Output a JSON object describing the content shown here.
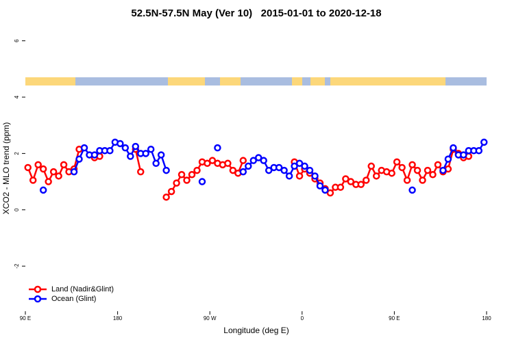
{
  "chart_data": {
    "type": "line",
    "title": "52.5N-57.5N May (Ver 10)   2015-01-01 to 2020-12-18",
    "xlabel": "Longitude (deg E)",
    "ylabel": "XCO2 - MLO trend (ppm)",
    "x": [
      92.5,
      97.5,
      102.5,
      107.5,
      112.5,
      117.5,
      122.5,
      127.5,
      132.5,
      137.5,
      142.5,
      147.5,
      152.5,
      157.5,
      162.5,
      167.5,
      172.5,
      177.5,
      182.5,
      187.5,
      192.5,
      197.5,
      202.5,
      207.5,
      212.5,
      217.5,
      222.5,
      227.5,
      232.5,
      237.5,
      242.5,
      247.5,
      252.5,
      257.5,
      262.5,
      267.5,
      272.5,
      277.5,
      282.5,
      287.5,
      292.5,
      297.5,
      302.5,
      307.5,
      312.5,
      317.5,
      322.5,
      327.5,
      332.5,
      337.5,
      342.5,
      347.5,
      352.5,
      357.5,
      362.5,
      367.5,
      372.5,
      377.5,
      382.5,
      387.5,
      392.5,
      397.5,
      402.5,
      407.5,
      412.5,
      417.5,
      422.5,
      427.5,
      432.5,
      437.5,
      442.5,
      447.5,
      452.5,
      457.5,
      462.5,
      467.5,
      472.5,
      477.5,
      482.5,
      487.5,
      492.5,
      497.5,
      502.5,
      507.5,
      512.5,
      517.5,
      522.5,
      527.5,
      532.5,
      537.5
    ],
    "series": [
      {
        "name": "Land (Nadir&Glint)",
        "color": "#ff0000",
        "values": [
          1.5,
          1.05,
          1.6,
          1.45,
          1.0,
          1.35,
          1.2,
          1.6,
          1.35,
          1.45,
          2.15,
          null,
          null,
          1.85,
          1.9,
          null,
          null,
          null,
          null,
          null,
          null,
          2.15,
          1.35,
          null,
          null,
          null,
          null,
          0.45,
          0.65,
          0.95,
          1.25,
          1.05,
          1.25,
          1.4,
          1.7,
          1.65,
          1.75,
          1.65,
          1.6,
          1.65,
          1.4,
          1.3,
          1.75,
          null,
          null,
          null,
          null,
          null,
          null,
          null,
          null,
          null,
          1.7,
          1.2,
          1.45,
          1.3,
          1.1,
          0.95,
          0.75,
          0.6,
          0.8,
          0.8,
          1.1,
          1.0,
          0.9,
          0.9,
          1.05,
          1.55,
          1.2,
          1.4,
          1.35,
          1.3,
          1.7,
          1.5,
          1.05,
          1.6,
          1.4,
          1.05,
          1.4,
          1.25,
          1.6,
          1.35,
          1.45,
          2.15,
          2.0,
          1.85,
          1.9,
          null,
          null,
          null
        ]
      },
      {
        "name": "Ocean (Glint)",
        "color": "#0000ff",
        "values": [
          null,
          null,
          null,
          0.7,
          null,
          null,
          null,
          null,
          null,
          1.35,
          1.8,
          2.2,
          1.95,
          1.95,
          2.1,
          2.1,
          2.1,
          2.4,
          2.35,
          2.2,
          1.9,
          2.25,
          2.0,
          2.0,
          2.15,
          1.65,
          1.95,
          1.4,
          null,
          null,
          null,
          null,
          null,
          null,
          1.0,
          null,
          null,
          2.2,
          null,
          null,
          null,
          null,
          1.35,
          1.55,
          1.75,
          1.85,
          1.75,
          1.4,
          1.5,
          1.5,
          1.4,
          1.2,
          1.55,
          1.65,
          1.55,
          1.4,
          1.2,
          0.85,
          0.7,
          null,
          null,
          null,
          null,
          null,
          null,
          null,
          null,
          null,
          null,
          null,
          null,
          null,
          null,
          null,
          null,
          0.7,
          null,
          null,
          null,
          null,
          null,
          1.4,
          1.8,
          2.2,
          1.95,
          1.95,
          2.1,
          2.1,
          2.1,
          2.4
        ]
      }
    ],
    "xlim": [
      90,
      540
    ],
    "xticks": [
      {
        "value": 90,
        "label": "90 E"
      },
      {
        "value": 180,
        "label": "180"
      },
      {
        "value": 270,
        "label": "90 W"
      },
      {
        "value": 360,
        "label": "0"
      },
      {
        "value": 450,
        "label": "90 E"
      },
      {
        "value": 540,
        "label": "180"
      }
    ],
    "ylim": [
      -3.6,
      6.55
    ],
    "yticks": [
      -2,
      0,
      2,
      4,
      6
    ],
    "legend": "bottom-left"
  }
}
